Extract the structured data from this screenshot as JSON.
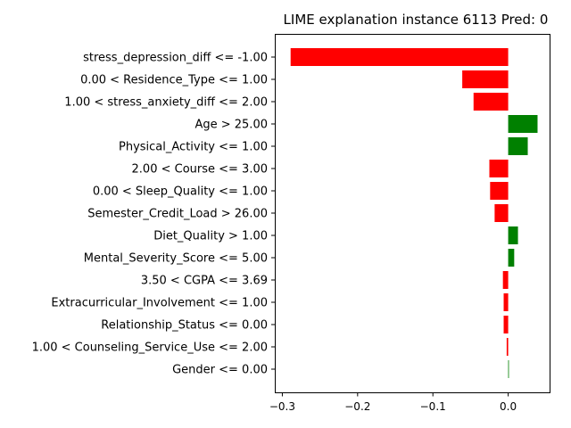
{
  "chart_data": {
    "type": "bar",
    "orientation": "horizontal",
    "title": "LIME explanation instance 6113 Pred: 0",
    "xlabel": "",
    "ylabel": "",
    "xlim": [
      -0.31,
      0.055
    ],
    "xticks": [
      -0.3,
      -0.2,
      -0.1,
      0.0
    ],
    "xtick_labels": [
      "−0.3",
      "−0.2",
      "−0.1",
      "0.0"
    ],
    "grid": false,
    "legend": "none",
    "colors": {
      "positive": "#008000",
      "negative": "#ff0000"
    },
    "categories": [
      "stress_depression_diff <= -1.00",
      "0.00 < Residence_Type <= 1.00",
      "1.00 < stress_anxiety_diff <= 2.00",
      "Age > 25.00",
      "Physical_Activity <= 1.00",
      "2.00 < Course <= 3.00",
      "0.00 < Sleep_Quality <= 1.00",
      "Semester_Credit_Load > 26.00",
      "Diet_Quality > 1.00",
      "Mental_Severity_Score <= 5.00",
      "3.50 < CGPA <= 3.69",
      "Extracurricular_Involvement <= 1.00",
      "Relationship_Status <= 0.00",
      "1.00 < Counseling_Service_Use <= 2.00",
      "Gender <= 0.00"
    ],
    "values": [
      -0.289,
      -0.061,
      -0.046,
      0.039,
      0.026,
      -0.025,
      -0.024,
      -0.018,
      0.013,
      0.008,
      -0.007,
      -0.006,
      -0.006,
      -0.002,
      0.0007
    ]
  }
}
